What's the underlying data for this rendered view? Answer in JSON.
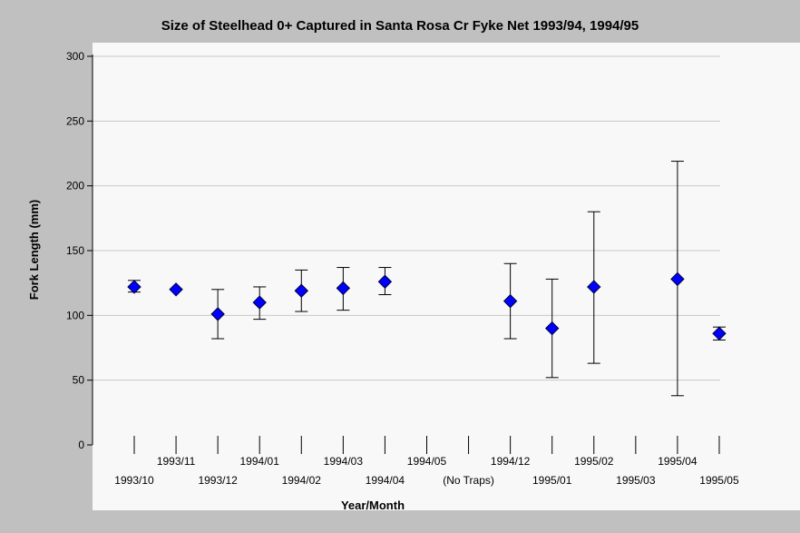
{
  "chart_data": {
    "type": "scatter",
    "title": "Size of Steelhead 0+ Captured in Santa Rosa Cr Fyke Net 1993/94, 1994/95",
    "xlabel": "Year/Month",
    "ylabel": "Fork Length (mm)",
    "ylim": [
      0,
      300
    ],
    "yticks": [
      0,
      50,
      100,
      150,
      200,
      250,
      300
    ],
    "grid": "horizontal",
    "categories": [
      "1993/10",
      "1993/11",
      "1993/12",
      "1994/01",
      "1994/02",
      "1994/03",
      "1994/04",
      "1994/05",
      "(No Traps)",
      "1994/12",
      "1995/01",
      "1995/02",
      "1995/03",
      "1995/04",
      "1995/05"
    ],
    "series": [
      {
        "x": [
          "1993/10",
          "1993/11",
          "1993/12",
          "1994/01",
          "1994/02",
          "1994/03",
          "1994/04",
          "1994/12",
          "1995/01",
          "1995/02",
          "1995/04",
          "1995/05"
        ],
        "y": [
          122,
          120,
          101,
          110,
          119,
          121,
          126,
          111,
          90,
          122,
          128,
          86
        ],
        "error_low": [
          118,
          120,
          82,
          97,
          103,
          104,
          116,
          82,
          52,
          63,
          38,
          81
        ],
        "error_high": [
          127,
          120,
          120,
          122,
          135,
          137,
          137,
          140,
          128,
          180,
          219,
          91
        ],
        "marker": "diamond",
        "color": "#0000ff"
      }
    ]
  },
  "colors": {
    "background": "#c0c0c0",
    "plot_background": "#f8f8f8",
    "gridline": "#c8c8c8",
    "marker": "#0000ff"
  }
}
